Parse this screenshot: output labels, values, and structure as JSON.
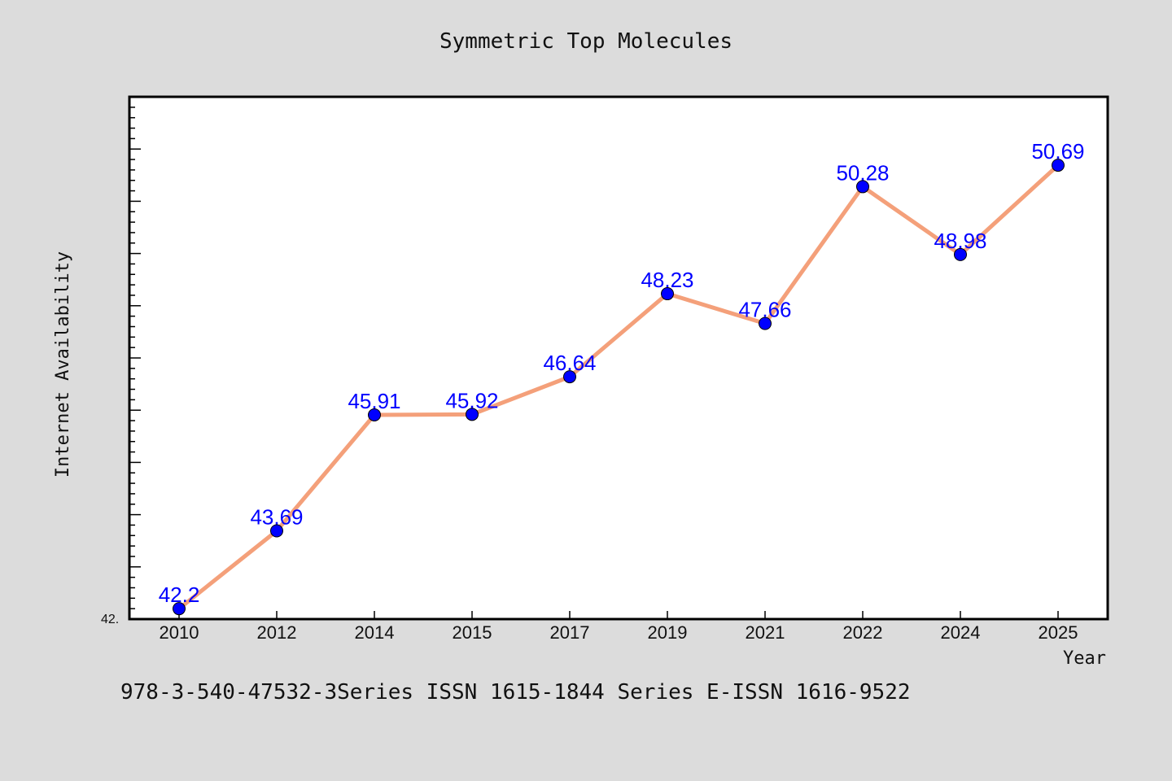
{
  "chart_data": {
    "type": "line",
    "title": "Symmetric Top Molecules",
    "xlabel": "Year",
    "ylabel": "Internet Availability",
    "categories": [
      "2010",
      "2012",
      "2014",
      "2015",
      "2017",
      "2019",
      "2021",
      "2022",
      "2024",
      "2025"
    ],
    "values": [
      42.2,
      43.69,
      45.91,
      45.92,
      46.64,
      48.23,
      47.66,
      50.28,
      48.98,
      50.69
    ],
    "value_labels": [
      "42.2",
      "43.69",
      "45.91",
      "45.92",
      "46.64",
      "48.23",
      "47.66",
      "50.28",
      "48.98",
      "50.69"
    ],
    "ylim": [
      42,
      52
    ],
    "y_min_label": "42.",
    "line_color": "#f4a07a",
    "marker_color": "#0000ff",
    "label_color": "#0000ff",
    "grid": false,
    "legend": "none"
  },
  "footer_note": "978-3-540-47532-3Series ISSN 1615-1844 Series E-ISSN 1616-9522"
}
